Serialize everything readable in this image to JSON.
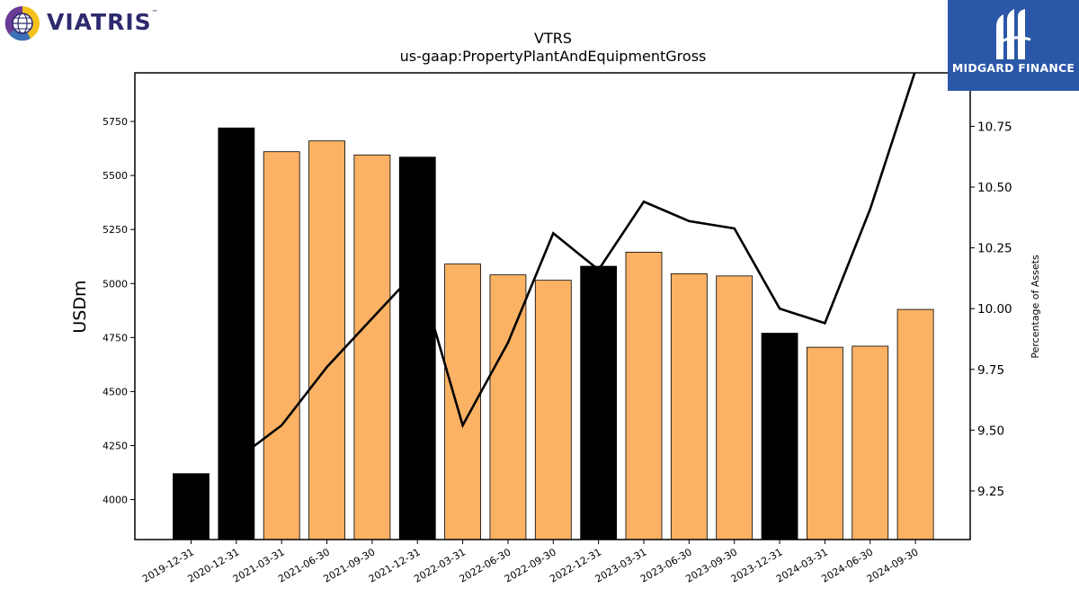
{
  "logos": {
    "left_text": "VIATRIS",
    "left_tm": "™",
    "right_text": "MIDGARD FINANCE",
    "left_icon": "viatris-globe-logo",
    "right_icon": "midgard-m-logo"
  },
  "chart_data": {
    "type": "bar",
    "title": "VTRS",
    "subtitle": "us-gaap:PropertyPlantAndEquipmentGross",
    "xlabel": "",
    "ylabel": "USDm",
    "y2label": "Percentage of Assets",
    "ylim": [
      3815,
      5975
    ],
    "y2lim": [
      9.05,
      10.97
    ],
    "yticks": [
      4000,
      4250,
      4500,
      4750,
      5000,
      5250,
      5500,
      5750
    ],
    "y2ticks": [
      9.25,
      9.5,
      9.75,
      10.0,
      10.25,
      10.5,
      10.75
    ],
    "y2tick_labels": [
      "9.25",
      "9.50",
      "9.75",
      "10.00",
      "10.25",
      "10.50",
      "10.75"
    ],
    "categories": [
      "2019-12-31",
      "2020-12-31",
      "2021-03-31",
      "2021-06-30",
      "2021-09-30",
      "2021-12-31",
      "2022-03-31",
      "2022-06-30",
      "2022-09-30",
      "2022-12-31",
      "2023-03-31",
      "2023-06-30",
      "2023-09-30",
      "2023-12-31",
      "2024-03-31",
      "2024-06-30",
      "2024-09-30"
    ],
    "series": [
      {
        "type": "bar",
        "axis": "left",
        "values": [
          4120,
          5720,
          5610,
          5660,
          5595,
          5585,
          5090,
          5040,
          5015,
          5080,
          5145,
          5045,
          5035,
          4770,
          4705,
          4710,
          4880
        ],
        "colors": [
          "#000000",
          "#000000",
          "#fbb264",
          "#fbb264",
          "#fbb264",
          "#000000",
          "#fbb264",
          "#fbb264",
          "#fbb264",
          "#000000",
          "#fbb264",
          "#fbb264",
          "#fbb264",
          "#000000",
          "#fbb264",
          "#fbb264",
          "#fbb264"
        ]
      },
      {
        "type": "line",
        "axis": "right",
        "color": "#000000",
        "values": [
          null,
          9.38,
          9.52,
          9.76,
          9.96,
          10.16,
          9.52,
          9.86,
          10.31,
          10.16,
          10.44,
          10.36,
          10.33,
          10.0,
          9.94,
          10.41,
          10.98
        ]
      }
    ],
    "grid": false,
    "legend": "none"
  }
}
